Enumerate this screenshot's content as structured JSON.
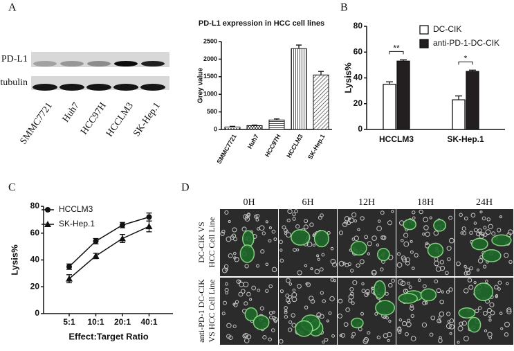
{
  "panels": [
    "A",
    "B",
    "C",
    "D"
  ],
  "blot": {
    "bands": [
      "PD-L1",
      "β-tubulin"
    ],
    "lanes": [
      "SMMC7721",
      "Huh7",
      "HCC97H",
      "HCCLM3",
      "SK-Hep.1"
    ]
  },
  "microscopy": {
    "columns": [
      "0H",
      "6H",
      "12H",
      "18H",
      "24H"
    ],
    "rows": [
      [
        "DC-CIK VS",
        "HCC Cell Line"
      ],
      [
        "anti-PD-1 DC-CIK",
        "VS HCC Cell Line"
      ]
    ]
  },
  "chart_data": [
    {
      "type": "bar",
      "title": "PD-L1 expression  in HCC cell lines",
      "y_label": "Grey value",
      "categories": [
        "SMMC7721",
        "Huh7",
        "HCC97H",
        "HCCLM3",
        "SK-Hep.1"
      ],
      "values": [
        70,
        110,
        270,
        2300,
        1550
      ],
      "errors": [
        20,
        15,
        30,
        100,
        100
      ],
      "colors": [
        "url(#p-dots)",
        "url(#p-check)",
        "url(#p-horiz)",
        "url(#p-vert)",
        "url(#p-diag)"
      ],
      "ylim": [
        0,
        2500
      ],
      "yticks": [
        0,
        500,
        1000,
        1500,
        2000,
        2500
      ]
    },
    {
      "type": "grouped-bar",
      "y_label": "Lysis%",
      "categories": [
        "HCCLM3",
        "SK-Hep.1"
      ],
      "series": [
        {
          "name": "DC-CIK",
          "color": "#ffffff",
          "values": [
            35,
            23
          ],
          "errors": [
            2,
            3
          ]
        },
        {
          "name": "anti-PD-1-DC-CIK",
          "color": "#231f20",
          "values": [
            53,
            45
          ],
          "errors": [
            1,
            1
          ]
        }
      ],
      "annotations": [
        "**",
        "*"
      ],
      "legend": "top-right",
      "ylim": [
        0,
        80
      ],
      "yticks": [
        0,
        20,
        40,
        60,
        80
      ]
    },
    {
      "type": "line",
      "y_label": "Lysis%",
      "x_label": "Effect:Target Ratio",
      "categories": [
        "5:1",
        "10:1",
        "20:1",
        "40:1"
      ],
      "series": [
        {
          "name": "HCCLM3",
          "color": "#111111",
          "marker": "circle",
          "values": [
            35,
            54,
            66,
            72
          ],
          "errors": [
            2,
            2,
            2,
            3
          ]
        },
        {
          "name": "SK-Hep.1",
          "color": "#111111",
          "marker": "triangle",
          "values": [
            26,
            43,
            56,
            65
          ],
          "errors": [
            3,
            2,
            3,
            4
          ]
        }
      ],
      "legend": "top-left",
      "ylim": [
        0,
        80
      ],
      "yticks": [
        0,
        20,
        40,
        60,
        80
      ]
    }
  ]
}
